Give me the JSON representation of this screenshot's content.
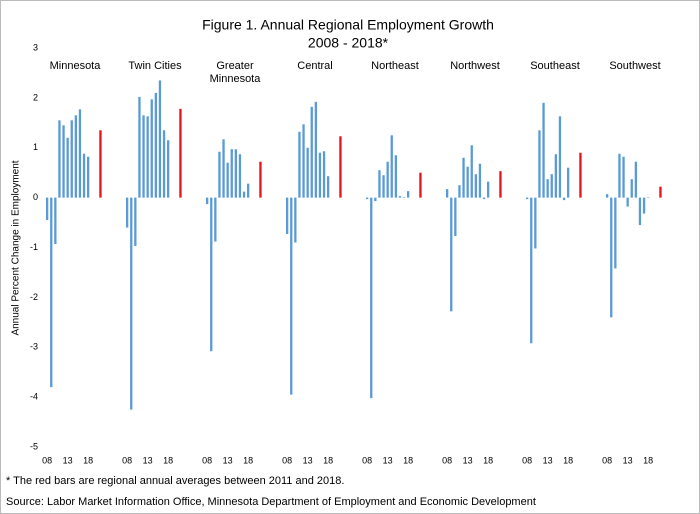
{
  "chart_data": {
    "type": "bar",
    "title": "Figure 1. Annual Regional Employment Growth",
    "subtitle": "2008 - 2018*",
    "y_label": "Annual Percent Change in Employment",
    "ylim": [
      -5,
      3
    ],
    "yticks": [
      -5,
      -4,
      -3,
      -2,
      -1,
      0,
      1,
      2,
      3
    ],
    "categories": [
      "08",
      null,
      null,
      null,
      null,
      "13",
      null,
      null,
      null,
      null,
      "18"
    ],
    "color": "#5b9bd5",
    "average_color": "#e8101a",
    "series": [
      {
        "name": "Minnesota",
        "values": [
          -0.45,
          -3.8,
          -0.93,
          1.55,
          1.45,
          1.2,
          1.55,
          1.65,
          1.77,
          0.88,
          0.82
        ],
        "average": 1.35
      },
      {
        "name": "Twin Cities",
        "values": [
          -0.6,
          -4.25,
          -0.97,
          2.02,
          1.65,
          1.63,
          1.97,
          2.1,
          2.35,
          1.35,
          1.15
        ],
        "average": 1.78
      },
      {
        "name": "Greater Minnesota",
        "values": [
          -0.13,
          -3.08,
          -0.88,
          0.92,
          1.17,
          0.7,
          0.97,
          0.97,
          0.87,
          0.12,
          0.28
        ],
        "average": 0.72
      },
      {
        "name": "Central",
        "values": [
          -0.73,
          -3.95,
          -0.9,
          1.32,
          1.47,
          1.0,
          1.82,
          1.92,
          0.9,
          0.93,
          0.43
        ],
        "average": 1.23
      },
      {
        "name": "Northeast",
        "values": [
          -0.03,
          -4.02,
          -0.07,
          0.55,
          0.45,
          0.72,
          1.25,
          0.85,
          0.03,
          0.01,
          0.13
        ],
        "average": 0.5
      },
      {
        "name": "Northwest",
        "values": [
          0.17,
          -2.28,
          -0.77,
          0.25,
          0.8,
          0.62,
          1.05,
          0.47,
          0.68,
          -0.03,
          0.32
        ],
        "average": 0.53
      },
      {
        "name": "Southeast",
        "values": [
          -0.03,
          -2.92,
          -1.02,
          1.35,
          1.9,
          0.37,
          0.47,
          0.87,
          1.63,
          -0.05,
          0.6
        ],
        "average": 0.9
      },
      {
        "name": "Southwest",
        "values": [
          0.07,
          -2.4,
          -1.42,
          0.88,
          0.82,
          -0.18,
          0.37,
          0.72,
          -0.55,
          -0.32,
          0.01
        ],
        "average": 0.22
      }
    ],
    "footnote": "* The red bars are regional annual averages between 2011 and 2018.",
    "source": "Source: Labor Market Information Office, Minnesota Department of Employment and Economic Development"
  }
}
